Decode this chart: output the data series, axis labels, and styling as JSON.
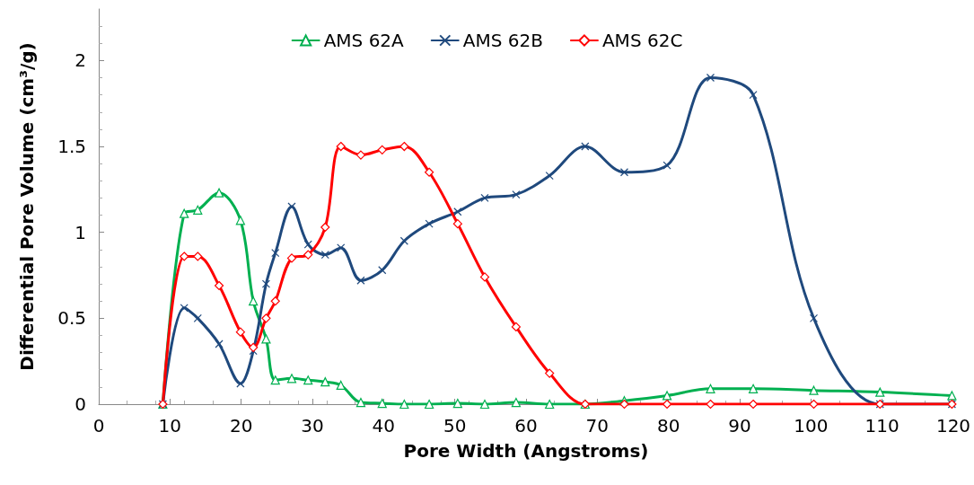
{
  "chart_data": {
    "type": "line",
    "xlabel": "Pore Width (Angstroms)",
    "ylabel": "Differential Pore Volume (cm³/g)",
    "x": [
      9,
      12,
      13.9,
      16.9,
      19.9,
      21.7,
      23.5,
      24.8,
      27.1,
      29.4,
      31.8,
      34,
      36.8,
      39.8,
      42.9,
      46.4,
      50.4,
      54.2,
      58.6,
      63.3,
      68.3,
      73.8,
      79.8,
      85.9,
      91.9,
      100.4,
      109.7,
      119.8
    ],
    "series": [
      {
        "name": "AMS 62A",
        "color": "#00b050",
        "marker": "triangle",
        "values": [
          0,
          1.11,
          1.13,
          1.23,
          1.07,
          0.6,
          0.38,
          0.14,
          0.15,
          0.14,
          0.13,
          0.11,
          0.01,
          0.005,
          0,
          0,
          0.005,
          0,
          0.01,
          0,
          0,
          0.02,
          0.05,
          0.09,
          0.09,
          0.08,
          0.07,
          0.05
        ]
      },
      {
        "name": "AMS 62B",
        "color": "#1f497d",
        "marker": "cross",
        "values": [
          0,
          0.56,
          0.5,
          0.35,
          0.12,
          0.31,
          0.7,
          0.88,
          1.15,
          0.93,
          0.87,
          0.91,
          0.72,
          0.78,
          0.95,
          1.05,
          1.12,
          1.2,
          1.22,
          1.33,
          1.5,
          1.35,
          1.39,
          1.9,
          1.8,
          0.5,
          0,
          0
        ]
      },
      {
        "name": "AMS 62C",
        "color": "#ff0000",
        "marker": "diamond",
        "values": [
          0,
          0.86,
          0.86,
          0.69,
          0.42,
          0.33,
          0.5,
          0.6,
          0.85,
          0.87,
          1.03,
          1.5,
          1.45,
          1.48,
          1.5,
          1.35,
          1.05,
          0.74,
          0.45,
          0.18,
          0,
          0,
          0,
          0,
          0,
          0,
          0,
          0
        ]
      }
    ],
    "xlim": [
      0,
      120
    ],
    "xticks": [
      0,
      10,
      20,
      30,
      40,
      50,
      60,
      70,
      80,
      90,
      100,
      110,
      120
    ],
    "ylim": [
      0,
      2.3
    ],
    "yticks": [
      0,
      0.5,
      1,
      1.5,
      2
    ],
    "grid": false,
    "legend": "top",
    "line_style": "solid"
  }
}
